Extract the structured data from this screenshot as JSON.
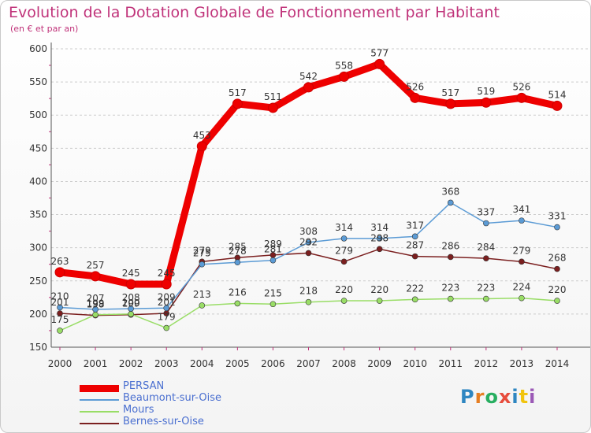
{
  "title": "Evolution de la Dotation Globale de Fonctionnement par Habitant",
  "subtitle": "(en € et par an)",
  "brand": {
    "letters": [
      "P",
      "r",
      "o",
      "x",
      "i",
      "t",
      "i"
    ],
    "colors": [
      "#2e86c1",
      "#e67e22",
      "#27ae60",
      "#e74c3c",
      "#2e86c1",
      "#f1c40f",
      "#9b59b6"
    ]
  },
  "chart_data": {
    "type": "line",
    "title": "Evolution de la Dotation Globale de Fonctionnement par Habitant",
    "subtitle": "(en € et par an)",
    "x": [
      2000,
      2001,
      2002,
      2003,
      2004,
      2005,
      2006,
      2007,
      2008,
      2009,
      2010,
      2011,
      2012,
      2013,
      2014
    ],
    "x_labels": [
      "2000",
      "2001",
      "2002",
      "2003",
      "2004",
      "2005",
      "2006",
      "2007",
      "2008",
      "2009",
      "2010",
      "2011",
      "2012",
      "2013",
      "2014"
    ],
    "ylim": [
      150,
      600
    ],
    "y_ticks": [
      150,
      200,
      250,
      300,
      350,
      400,
      450,
      500,
      550,
      600
    ],
    "grid": "horizontal dashed",
    "legend_position": "bottom-left",
    "series": [
      {
        "name": "PERSAN",
        "color": "#ee0000",
        "values": [
          263,
          257,
          245,
          245,
          453,
          517,
          511,
          542,
          558,
          577,
          526,
          517,
          519,
          526,
          514
        ]
      },
      {
        "name": "Beaumont-sur-Oise",
        "color": "#5b9bd5",
        "values": [
          210,
          207,
          208,
          209,
          275,
          278,
          281,
          308,
          314,
          314,
          317,
          368,
          337,
          341,
          331
        ]
      },
      {
        "name": "Mours",
        "color": "#99dd66",
        "values": [
          175,
          199,
          200,
          179,
          213,
          216,
          215,
          218,
          220,
          220,
          222,
          223,
          223,
          224,
          220
        ]
      },
      {
        "name": "Bernes-sur-Oise",
        "color": "#7b1f1f",
        "values": [
          201,
          198,
          199,
          201,
          279,
          285,
          289,
          292,
          279,
          298,
          287,
          286,
          284,
          279,
          268
        ]
      }
    ]
  }
}
